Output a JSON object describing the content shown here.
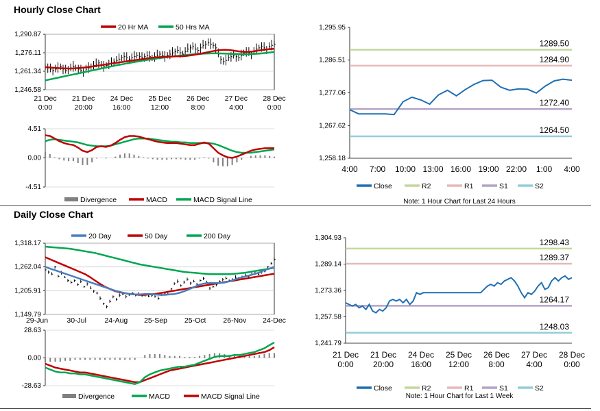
{
  "sections": {
    "hourly_title": "Hourly Close Chart",
    "daily_title": "Daily Close Chart"
  },
  "colors": {
    "ma_red": "#c00000",
    "ma_green": "#00a650",
    "blue": "#4a7ebb",
    "divergence": "#808080",
    "line_blue": "#1f6fb4",
    "r2": "#c4d79b",
    "r1": "#e6b9b8",
    "s1": "#b3a2c7",
    "s2": "#93cddd"
  },
  "chart_data": [
    {
      "id": "hourly_price",
      "type": "line",
      "title": "",
      "legend": [
        "20 Hr MA",
        "50 Hrs MA"
      ],
      "ylim": [
        1246.58,
        1290.87
      ],
      "yticks": [
        "1,290.87",
        "1,276.11",
        "1,261.34",
        "1,246.58"
      ],
      "ytick_values": [
        1290.87,
        1276.11,
        1261.34,
        1246.58
      ],
      "xticks": [
        "21 Dec|0:00",
        "21 Dec|20:00",
        "24 Dec|16:00",
        "25 Dec|12:00",
        "26 Dec|8:00",
        "27 Dec|4:00",
        "28 Dec|0:00"
      ],
      "price": [
        1265,
        1264,
        1263,
        1262,
        1263,
        1264,
        1265,
        1263,
        1262,
        1263,
        1264,
        1265,
        1264,
        1263,
        1262,
        1261,
        1263,
        1264,
        1265,
        1266,
        1267,
        1268,
        1266,
        1265,
        1266,
        1267,
        1268,
        1269,
        1270,
        1271,
        1272,
        1273,
        1272,
        1271,
        1272,
        1273,
        1274,
        1273,
        1272,
        1273,
        1274,
        1273,
        1272,
        1273,
        1274,
        1275,
        1274,
        1273,
        1274,
        1275,
        1276,
        1277,
        1278,
        1276,
        1275,
        1277,
        1279,
        1280,
        1281,
        1279,
        1278,
        1280,
        1282,
        1283,
        1284,
        1283,
        1282,
        1280,
        1275,
        1271,
        1269,
        1270,
        1272,
        1273,
        1274,
        1273,
        1272,
        1274,
        1276,
        1277,
        1276,
        1275,
        1277,
        1279,
        1280,
        1281,
        1280,
        1279,
        1281,
        1282,
        1283
      ],
      "series": [
        {
          "name": "20 Hr MA",
          "values": [
            1264.5,
            1264.4,
            1264.2,
            1264.0,
            1263.8,
            1263.7,
            1263.6,
            1263.5,
            1263.6,
            1263.8,
            1264.0,
            1264.3,
            1264.6,
            1265.0,
            1265.4,
            1265.8,
            1266.2,
            1266.7,
            1267.2,
            1267.6,
            1268.0,
            1268.4,
            1268.8,
            1269.2,
            1269.6,
            1270.0,
            1270.4,
            1270.8,
            1271.2,
            1271.6,
            1272.0,
            1272.3,
            1272.5,
            1272.7,
            1272.9,
            1273.0,
            1273.1,
            1273.2,
            1273.3,
            1273.4,
            1273.6,
            1273.9,
            1274.3,
            1274.8,
            1275.3,
            1275.9,
            1276.5,
            1277.1,
            1277.6,
            1278.0,
            1278.3,
            1278.4,
            1278.3,
            1278.0,
            1277.6,
            1277.2,
            1276.9,
            1276.8,
            1276.9,
            1277.2,
            1277.6,
            1278.0,
            1278.4,
            1278.8,
            1279.1,
            1279.3
          ]
        },
        {
          "name": "50 Hrs MA",
          "values": [
            1254.0,
            1254.6,
            1255.2,
            1255.8,
            1256.4,
            1257.0,
            1257.6,
            1258.2,
            1258.8,
            1259.4,
            1260.0,
            1260.6,
            1261.2,
            1261.8,
            1262.4,
            1263.0,
            1263.6,
            1264.2,
            1264.8,
            1265.4,
            1266.0,
            1266.5,
            1267.0,
            1267.5,
            1268.0,
            1268.5,
            1269.0,
            1269.5,
            1270.0,
            1270.4,
            1270.8,
            1271.2,
            1271.6,
            1272.0,
            1272.4,
            1272.8,
            1273.1,
            1273.4,
            1273.7,
            1274.0,
            1274.3,
            1274.6,
            1274.8,
            1275.0,
            1275.2,
            1275.4,
            1275.5,
            1275.6,
            1275.6,
            1275.6,
            1275.5,
            1275.4,
            1275.3,
            1275.2,
            1275.1,
            1275.0,
            1274.9,
            1274.9,
            1275.0,
            1275.1,
            1275.3,
            1275.5,
            1275.8,
            1276.1,
            1276.4,
            1276.7
          ]
        }
      ]
    },
    {
      "id": "hourly_macd",
      "type": "line",
      "legend": [
        "Divergence",
        "MACD",
        "MACD Signal Line"
      ],
      "ylim": [
        -4.51,
        4.51
      ],
      "yticks": [
        "4.51",
        "0.00",
        "-4.51"
      ],
      "ytick_values": [
        4.51,
        0,
        -4.51
      ],
      "series": [
        {
          "name": "MACD",
          "values": [
            3.5,
            3.4,
            3.0,
            2.6,
            2.3,
            2.1,
            2.0,
            1.6,
            1.1,
            0.9,
            1.2,
            1.7,
            1.8,
            1.7,
            1.9,
            2.3,
            2.8,
            3.2,
            3.4,
            3.4,
            3.3,
            3.1,
            2.9,
            2.7,
            2.5,
            2.4,
            2.3,
            2.3,
            2.3,
            2.2,
            2.1,
            2.0,
            2.0,
            2.2,
            2.4,
            2.2,
            1.5,
            0.8,
            0.4,
            0.1,
            0.0,
            0.2,
            0.5,
            0.8,
            1.1,
            1.3,
            1.4,
            1.5,
            1.5,
            1.5
          ]
        },
        {
          "name": "MACD Signal Line",
          "values": [
            2.6,
            2.8,
            2.9,
            2.8,
            2.7,
            2.6,
            2.5,
            2.4,
            2.2,
            2.0,
            1.9,
            1.8,
            1.8,
            1.8,
            1.9,
            2.1,
            2.3,
            2.5,
            2.7,
            2.9,
            3.0,
            3.0,
            3.0,
            2.9,
            2.8,
            2.7,
            2.6,
            2.5,
            2.5,
            2.4,
            2.4,
            2.3,
            2.3,
            2.3,
            2.3,
            2.3,
            2.2,
            2.0,
            1.7,
            1.4,
            1.1,
            0.9,
            0.8,
            0.8,
            0.8,
            0.9,
            1.0,
            1.1,
            1.2,
            1.3
          ]
        },
        {
          "name": "Divergence",
          "values": [
            0.9,
            0.6,
            0.1,
            -0.2,
            -0.4,
            -0.5,
            -0.5,
            -0.8,
            -1.1,
            -1.1,
            -0.7,
            -0.1,
            0.0,
            -0.1,
            0.0,
            0.2,
            0.5,
            0.7,
            0.7,
            0.5,
            0.3,
            0.1,
            -0.1,
            -0.2,
            -0.3,
            -0.3,
            -0.3,
            -0.2,
            -0.2,
            -0.2,
            -0.3,
            -0.3,
            -0.3,
            -0.1,
            0.1,
            -0.1,
            -0.7,
            -1.2,
            -1.3,
            -1.3,
            -1.1,
            -0.7,
            -0.3,
            0.0,
            0.3,
            0.4,
            0.4,
            0.4,
            0.3,
            0.2
          ]
        }
      ]
    },
    {
      "id": "hourly_levels",
      "type": "line",
      "ylim": [
        1258.18,
        1295.95
      ],
      "yticks": [
        "1,295.95",
        "1,286.51",
        "1,277.06",
        "1,267.62",
        "1,258.18"
      ],
      "ytick_values": [
        1295.95,
        1286.51,
        1277.06,
        1267.62,
        1258.18
      ],
      "xticks": [
        "4:00",
        "7:00",
        "10:00",
        "13:00",
        "16:00",
        "19:00",
        "22:00",
        "1:00",
        "4:00"
      ],
      "levels": [
        {
          "name": "R2",
          "value": 1289.5,
          "label": "1289.50"
        },
        {
          "name": "R1",
          "value": 1284.9,
          "label": "1284.90"
        },
        {
          "name": "S1",
          "value": 1272.4,
          "label": "1272.40"
        },
        {
          "name": "S2",
          "value": 1264.5,
          "label": "1264.50"
        }
      ],
      "close": [
        1272.2,
        1271.0,
        1271.0,
        1271.0,
        1271.0,
        1270.8,
        1274.5,
        1275.8,
        1275.0,
        1273.8,
        1276.5,
        1277.8,
        1276.2,
        1278.0,
        1279.5,
        1280.6,
        1280.7,
        1278.7,
        1277.8,
        1278.2,
        1278.1,
        1277.0,
        1279.0,
        1280.5,
        1281.0,
        1280.7
      ],
      "legend": [
        "Close",
        "R2",
        "R1",
        "S1",
        "S2"
      ],
      "note": "Note: 1 Hour Chart for Last 24 Hours"
    },
    {
      "id": "daily_price",
      "type": "line",
      "legend": [
        "20 Day",
        "50 Day",
        "200 Day"
      ],
      "ylim": [
        1149.79,
        1318.17
      ],
      "yticks": [
        "1,318.17",
        "1,262.04",
        "1,205.91",
        "1,149.79"
      ],
      "ytick_values": [
        1318.17,
        1262.04,
        1205.91,
        1149.79
      ],
      "xticks": [
        "29-Jun",
        "30-Jul",
        "24-Aug",
        "25-Sep",
        "25-Oct",
        "26-Nov",
        "24-Dec"
      ],
      "price": [
        1255,
        1250,
        1245,
        1262,
        1240,
        1248,
        1238,
        1230,
        1225,
        1230,
        1220,
        1228,
        1215,
        1222,
        1212,
        1205,
        1200,
        1188,
        1175,
        1168,
        1180,
        1192,
        1185,
        1195,
        1198,
        1192,
        1196,
        1200,
        1195,
        1198,
        1194,
        1196,
        1193,
        1195,
        1192,
        1188,
        1196,
        1200,
        1198,
        1210,
        1222,
        1228,
        1218,
        1226,
        1232,
        1224,
        1228,
        1220,
        1230,
        1235,
        1225,
        1212,
        1215,
        1220,
        1228,
        1232,
        1235,
        1230,
        1232,
        1238,
        1236,
        1238,
        1242,
        1240,
        1245,
        1248,
        1245,
        1250,
        1252,
        1262,
        1270,
        1280
      ],
      "series": [
        {
          "name": "20 Day",
          "values": [
            1262,
            1258,
            1254,
            1250,
            1246,
            1242,
            1238,
            1234,
            1230,
            1226,
            1222,
            1218,
            1214,
            1210,
            1206,
            1203,
            1200,
            1198,
            1197,
            1197,
            1198,
            1198,
            1197,
            1196,
            1196,
            1197,
            1198,
            1201,
            1205,
            1210,
            1215,
            1220,
            1223,
            1224,
            1224,
            1224,
            1225,
            1228,
            1232,
            1236,
            1239,
            1242,
            1245,
            1249,
            1254,
            1258,
            1262
          ]
        },
        {
          "name": "50 Day",
          "values": [
            1285,
            1280,
            1275,
            1270,
            1265,
            1260,
            1255,
            1250,
            1245,
            1238,
            1230,
            1222,
            1215,
            1210,
            1205,
            1202,
            1200,
            1198,
            1197,
            1196,
            1196,
            1197,
            1198,
            1200,
            1202,
            1204,
            1206,
            1208,
            1210,
            1212,
            1214,
            1216,
            1218,
            1220,
            1222,
            1224,
            1226,
            1228,
            1230,
            1232,
            1234,
            1236,
            1238,
            1240,
            1242,
            1244,
            1246
          ]
        },
        {
          "name": "200 Day",
          "values": [
            1310,
            1309,
            1308,
            1307,
            1306,
            1305,
            1303,
            1301,
            1299,
            1297,
            1295,
            1292,
            1289,
            1286,
            1283,
            1280,
            1277,
            1274,
            1271,
            1268,
            1266,
            1264,
            1262,
            1260,
            1258,
            1256,
            1254,
            1252,
            1250,
            1249,
            1248,
            1247,
            1246,
            1245,
            1245,
            1245,
            1245,
            1245,
            1246,
            1247,
            1248,
            1250,
            1252,
            1254,
            1256,
            1258,
            1260
          ]
        }
      ]
    },
    {
      "id": "daily_macd",
      "type": "line",
      "legend": [
        "Divergence",
        "MACD",
        "MACD Signal Line"
      ],
      "ylim": [
        -28.63,
        28.63
      ],
      "yticks": [
        "28.63",
        "0.00",
        "-28.63"
      ],
      "ytick_values": [
        28.63,
        0,
        -28.63
      ],
      "series": [
        {
          "name": "MACD",
          "values": [
            -10,
            -12,
            -14,
            -15,
            -15,
            -16,
            -16,
            -17,
            -17,
            -18,
            -19,
            -20,
            -21,
            -22,
            -23,
            -24,
            -25,
            -26,
            -27,
            -25,
            -20,
            -17,
            -15,
            -13,
            -12,
            -11,
            -10,
            -9,
            -9,
            -8,
            -7,
            -5,
            -3,
            -1,
            1,
            2,
            2,
            2,
            3,
            3,
            4,
            5,
            6,
            8,
            10,
            13,
            16
          ]
        },
        {
          "name": "MACD Signal Line",
          "values": [
            -6,
            -8,
            -10,
            -11,
            -12,
            -13,
            -14,
            -15,
            -15,
            -16,
            -17,
            -18,
            -19,
            -20,
            -21,
            -22,
            -23,
            -24,
            -25,
            -25,
            -23,
            -21,
            -19,
            -17,
            -15,
            -13,
            -12,
            -11,
            -10,
            -9,
            -8,
            -7,
            -6,
            -5,
            -4,
            -3,
            -2,
            -1,
            0,
            1,
            2,
            3,
            4,
            5,
            6,
            8,
            11
          ]
        },
        {
          "name": "Divergence",
          "values": [
            -4,
            -4,
            -4,
            -4,
            -3,
            -3,
            -2,
            -2,
            -2,
            -2,
            -2,
            -2,
            -2,
            -2,
            -2,
            -2,
            -2,
            -2,
            -2,
            0,
            3,
            4,
            4,
            4,
            3,
            2,
            2,
            2,
            1,
            1,
            1,
            2,
            3,
            4,
            5,
            5,
            4,
            3,
            3,
            2,
            2,
            2,
            2,
            3,
            4,
            5,
            5
          ]
        }
      ]
    },
    {
      "id": "daily_levels",
      "type": "line",
      "ylim": [
        1241.79,
        1304.93
      ],
      "yticks": [
        "1,304.93",
        "1,289.14",
        "1,273.36",
        "1,257.58",
        "1,241.79"
      ],
      "ytick_values": [
        1304.93,
        1289.14,
        1273.36,
        1257.58,
        1241.79
      ],
      "xticks": [
        "21 Dec|0:00",
        "21 Dec|20:00",
        "24 Dec|16:00",
        "25 Dec|12:00",
        "26 Dec|8:00",
        "27 Dec|4:00",
        "28 Dec|0:00"
      ],
      "levels": [
        {
          "name": "R2",
          "value": 1298.43,
          "label": "1298.43"
        },
        {
          "name": "R1",
          "value": 1289.37,
          "label": "1289.37"
        },
        {
          "name": "S1",
          "value": 1264.17,
          "label": "1264.17"
        },
        {
          "name": "S2",
          "value": 1248.03,
          "label": "1248.03"
        }
      ],
      "close": [
        1266,
        1265,
        1264,
        1265,
        1263,
        1264,
        1262,
        1265,
        1261,
        1260,
        1262,
        1261,
        1263,
        1267,
        1268,
        1267,
        1268,
        1266,
        1268,
        1265,
        1267,
        1272,
        1271,
        1272,
        1272,
        1272,
        1272,
        1272,
        1272,
        1272,
        1272,
        1272,
        1272,
        1272,
        1272,
        1272,
        1272,
        1272,
        1272,
        1272,
        1272,
        1274,
        1276,
        1277,
        1276,
        1278,
        1277,
        1279,
        1280,
        1281,
        1279,
        1276,
        1272,
        1269,
        1272,
        1271,
        1273,
        1276,
        1278,
        1274,
        1275,
        1279,
        1281,
        1279,
        1281,
        1282,
        1280,
        1281
      ],
      "legend": [
        "Close",
        "R2",
        "R1",
        "S1",
        "S2"
      ],
      "note": "Note: 1 Hour Chart for Last 1 Week"
    }
  ]
}
